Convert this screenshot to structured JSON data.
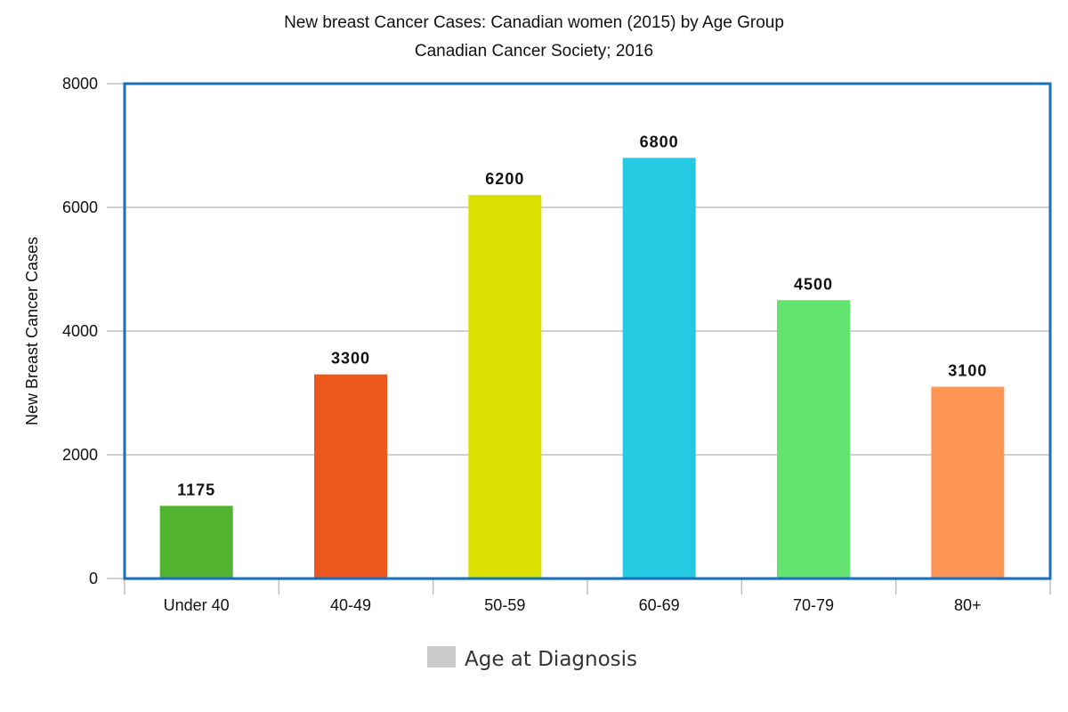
{
  "chart_data": {
    "type": "bar",
    "title": "New breast Cancer Cases: Canadian women (2015) by Age Group",
    "subtitle": "Canadian Cancer Society; 2016",
    "xlabel": "",
    "ylabel": "New Breast Cancer Cases",
    "ylim": [
      0,
      8000
    ],
    "yticks": [
      0,
      2000,
      4000,
      6000,
      8000
    ],
    "categories": [
      "Under 40",
      "40-49",
      "50-59",
      "60-69",
      "70-79",
      "80+"
    ],
    "values": [
      1175,
      3300,
      6200,
      6800,
      4500,
      3100
    ],
    "data_labels": [
      "1175",
      "3300",
      "6200",
      "6800",
      "4500",
      "3100"
    ],
    "bar_colors": [
      "#52b331",
      "#ec571c",
      "#dce000",
      "#25c9e1",
      "#63e36f",
      "#ff9655"
    ],
    "grid": true,
    "legend": {
      "position": "bottom",
      "entries": [
        {
          "label": "Age at Diagnosis",
          "color": "#cccccc"
        }
      ]
    },
    "frame_color": "#1a6fbf"
  }
}
